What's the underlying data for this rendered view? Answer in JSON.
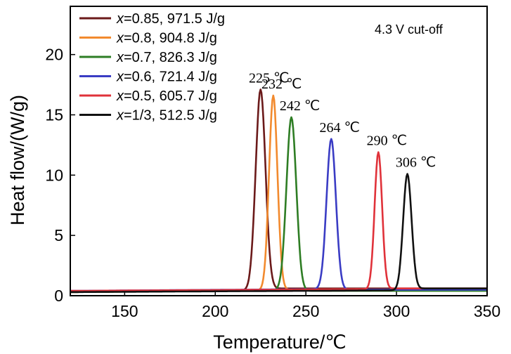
{
  "chart_data": {
    "type": "line",
    "title": "",
    "xlabel": "Temperature/℃",
    "ylabel": "Heat flow/(W/g)",
    "xlim": [
      120,
      350
    ],
    "ylim": [
      0,
      24
    ],
    "xticks": [
      150,
      200,
      250,
      300,
      350
    ],
    "yticks": [
      0,
      5,
      10,
      15,
      20
    ],
    "annotation": "4.3 V cut-off",
    "legend_position": "top-left",
    "series": [
      {
        "name": "x=0.85, 971.5 J/g",
        "legend_prefix": "x",
        "legend_rest": "=0.85, 971.5 J/g",
        "color": "#6b1a1a",
        "peak_x": 225,
        "peak_y": 17.1,
        "peak_label": "225 ℃",
        "half_width": 4.2,
        "baseline_left": 0.3,
        "baseline_right": 0.6
      },
      {
        "name": "x=0.8, 904.8 J/g",
        "legend_prefix": "x",
        "legend_rest": "=0.8, 904.8 J/g",
        "color": "#f28a2e",
        "peak_x": 232,
        "peak_y": 16.6,
        "peak_label": "232 ℃",
        "half_width": 3.6,
        "baseline_left": 0.3,
        "baseline_right": 0.5
      },
      {
        "name": "x=0.7, 826.3 J/g",
        "legend_prefix": "x",
        "legend_rest": "=0.7, 826.3 J/g",
        "color": "#2e7d24",
        "peak_x": 242,
        "peak_y": 14.8,
        "peak_label": "242 ℃",
        "half_width": 4.2,
        "baseline_left": 0.3,
        "baseline_right": 0.4
      },
      {
        "name": "x=0.6, 721.4 J/g",
        "legend_prefix": "x",
        "legend_rest": "=0.6, 721.4 J/g",
        "color": "#3a3cc4",
        "peak_x": 264,
        "peak_y": 13.0,
        "peak_label": "264 ℃",
        "half_width": 4.0,
        "baseline_left": 0.4,
        "baseline_right": 0.5
      },
      {
        "name": "x=0.5, 605.7 J/g",
        "legend_prefix": "x",
        "legend_rest": "=0.5, 605.7 J/g",
        "color": "#e0323a",
        "peak_x": 290,
        "peak_y": 11.9,
        "peak_label": "290 ℃",
        "half_width": 3.2,
        "baseline_left": 0.4,
        "baseline_right": 0.6
      },
      {
        "name": "x=1/3, 512.5 J/g",
        "legend_prefix": "x",
        "legend_rest": "=1/3, 512.5 J/g",
        "color": "#111111",
        "peak_x": 306,
        "peak_y": 10.1,
        "peak_label": "306 ℃",
        "half_width": 3.6,
        "baseline_left": 0.3,
        "baseline_right": 0.6
      }
    ]
  }
}
